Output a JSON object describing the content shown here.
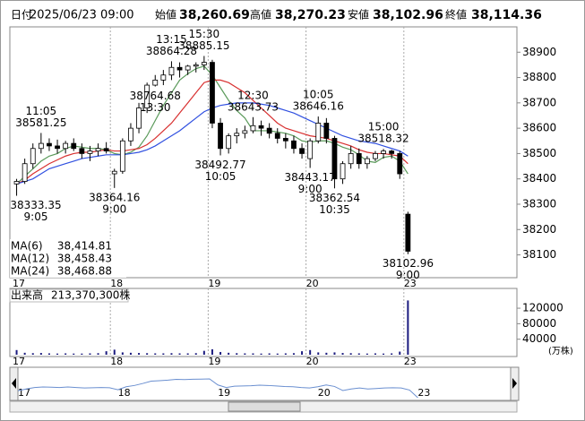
{
  "header": [
    {
      "label": "日付",
      "value": "2025/06/23 09:00",
      "color": "#000000"
    },
    {
      "label": "始値",
      "value": "38,260.69",
      "color": "#000000"
    },
    {
      "label": "高値",
      "value": "38,270.23",
      "color": "#e00000"
    },
    {
      "label": "安値",
      "value": "38,102.96",
      "color": "#008000"
    },
    {
      "label": "終値",
      "value": "38,114.36",
      "color": "#000000"
    }
  ],
  "chart_data": {
    "type": "candlestick",
    "categories": [
      "17",
      null,
      null,
      null,
      null,
      null,
      null,
      null,
      null,
      null,
      null,
      null,
      "18",
      null,
      null,
      null,
      null,
      null,
      null,
      null,
      null,
      null,
      null,
      null,
      "19",
      null,
      null,
      null,
      null,
      null,
      null,
      null,
      null,
      null,
      null,
      null,
      "20",
      null,
      null,
      null,
      null,
      null,
      null,
      null,
      null,
      null,
      null,
      null,
      "23"
    ],
    "open": [
      38380,
      38390,
      38460,
      38520,
      38540,
      38530,
      38520,
      38540,
      38520,
      38500,
      38510,
      38520,
      38420,
      38430,
      38550,
      38600,
      38680,
      38770,
      38790,
      38810,
      38840,
      38830,
      38845,
      38850,
      38860,
      38620,
      38520,
      38570,
      38580,
      38590,
      38610,
      38600,
      38580,
      38560,
      38550,
      38520,
      38480,
      38550,
      38620,
      38560,
      38400,
      38460,
      38500,
      38460,
      38480,
      38500,
      38510,
      38500,
      38260.69
    ],
    "high": [
      38400,
      38480,
      38540,
      38581.25,
      38560,
      38555,
      38550,
      38560,
      38540,
      38530,
      38540,
      38545,
      38440,
      38560,
      38620,
      38700,
      38780,
      38810,
      38830,
      38864.28,
      38860,
      38850,
      38860,
      38885.15,
      38870,
      38640,
      38580,
      38600,
      38610,
      38643.73,
      38630,
      38620,
      38600,
      38580,
      38570,
      38540,
      38560,
      38646.16,
      38640,
      38570,
      38470,
      38530,
      38520,
      38490,
      38510,
      38518.32,
      38515,
      38510,
      38270.23
    ],
    "low": [
      38333.35,
      38380,
      38440,
      38500,
      38510,
      38500,
      38500,
      38510,
      38480,
      38470,
      38490,
      38500,
      38364.16,
      38420,
      38530,
      38580,
      38660,
      38764.68,
      38770,
      38790,
      38800,
      38810,
      38820,
      38830,
      38600,
      38492.77,
      38500,
      38540,
      38560,
      38580,
      38570,
      38560,
      38540,
      38520,
      38500,
      38480,
      38443.17,
      38540,
      38540,
      38362.54,
      38380,
      38440,
      38440,
      38440,
      38470,
      38480,
      38480,
      38400,
      38102.96
    ],
    "close": [
      38390,
      38460,
      38520,
      38540,
      38530,
      38520,
      38540,
      38520,
      38500,
      38510,
      38520,
      38510,
      38430,
      38550,
      38600,
      38680,
      38770,
      38790,
      38810,
      38840,
      38830,
      38845,
      38850,
      38860,
      38620,
      38520,
      38570,
      38580,
      38590,
      38610,
      38600,
      38580,
      38560,
      38550,
      38520,
      38500,
      38550,
      38620,
      38560,
      38400,
      38460,
      38500,
      38460,
      38480,
      38500,
      38510,
      38500,
      38420,
      38114.36
    ],
    "ylim": [
      38010,
      39000
    ],
    "yticks": [
      38100,
      38200,
      38300,
      38400,
      38500,
      38600,
      38700,
      38800,
      38900
    ],
    "ma": [
      {
        "name": "MA(6)",
        "color": "#5a9a5a",
        "value_label": "38,414.81",
        "values": [
          38380,
          38410,
          38440,
          38470,
          38490,
          38500,
          38520,
          38530,
          38525,
          38520,
          38520,
          38515,
          38500,
          38495,
          38505,
          38525,
          38570,
          38630,
          38690,
          38740,
          38790,
          38815,
          38835,
          38845,
          38810,
          38760,
          38710,
          38670,
          38640,
          38590,
          38590,
          38590,
          38585,
          38580,
          38570,
          38550,
          38545,
          38550,
          38550,
          38540,
          38525,
          38515,
          38495,
          38470,
          38465,
          38485,
          38490,
          38470,
          38420
        ]
      },
      {
        "name": "MA(12)",
        "color": "#d83030",
        "value_label": "38,458.43",
        "values": [
          38380,
          38395,
          38420,
          38440,
          38460,
          38475,
          38490,
          38500,
          38505,
          38505,
          38510,
          38515,
          38510,
          38510,
          38515,
          38520,
          38535,
          38560,
          38590,
          38620,
          38660,
          38700,
          38740,
          38780,
          38790,
          38790,
          38780,
          38760,
          38740,
          38710,
          38680,
          38650,
          38620,
          38600,
          38590,
          38580,
          38570,
          38565,
          38560,
          38550,
          38540,
          38530,
          38515,
          38505,
          38500,
          38500,
          38495,
          38490,
          38460
        ]
      },
      {
        "name": "MA(24)",
        "color": "#3050e0",
        "value_label": "38,468.88",
        "values": [
          38380,
          38390,
          38400,
          38420,
          38440,
          38450,
          38460,
          38470,
          38480,
          38485,
          38490,
          38495,
          38495,
          38495,
          38500,
          38505,
          38515,
          38530,
          38550,
          38570,
          38590,
          38615,
          38640,
          38665,
          38680,
          38690,
          38695,
          38700,
          38700,
          38700,
          38695,
          38690,
          38680,
          38670,
          38660,
          38645,
          38630,
          38615,
          38600,
          38585,
          38570,
          38560,
          38550,
          38545,
          38540,
          38530,
          38520,
          38510,
          38490
        ]
      }
    ],
    "annotations": [
      {
        "candle": 0,
        "value": 38333.35,
        "time": "9:05",
        "side": "below"
      },
      {
        "candle": 3,
        "value": 38581.25,
        "time": "11:05",
        "side": "above"
      },
      {
        "candle": 12,
        "value": 38364.16,
        "time": "9:00",
        "side": "below"
      },
      {
        "candle": 17,
        "value": 38764.68,
        "time": "13:30",
        "side": "below"
      },
      {
        "candle": 19,
        "value": 38864.28,
        "time": "13:15",
        "side": "above"
      },
      {
        "candle": 23,
        "value": 38885.15,
        "time": "15:30",
        "side": "above"
      },
      {
        "candle": 25,
        "value": 38492.77,
        "time": "10:05",
        "side": "below"
      },
      {
        "candle": 29,
        "value": 38643.73,
        "time": "12:30",
        "side": "above"
      },
      {
        "candle": 36,
        "value": 38443.17,
        "time": "9:00",
        "side": "below"
      },
      {
        "candle": 37,
        "value": 38646.16,
        "time": "10:05",
        "side": "above"
      },
      {
        "candle": 39,
        "value": 38362.54,
        "time": "10:35",
        "side": "below"
      },
      {
        "candle": 45,
        "value": 38518.32,
        "time": "15:00",
        "side": "above"
      },
      {
        "candle": 48,
        "value": 38102.96,
        "time": "9:00",
        "side": "below"
      }
    ],
    "volume": {
      "label": "出来高",
      "total": "213,370,300株",
      "color": "#1c1c80",
      "unit": "(万株)",
      "ylim": [
        0,
        171000
      ],
      "yticks": [
        40000,
        80000,
        120000
      ],
      "values": [
        12000,
        5000,
        4000,
        4500,
        3500,
        3000,
        3500,
        3000,
        3000,
        3500,
        4000,
        9000,
        13000,
        6000,
        5000,
        4500,
        4000,
        3500,
        3500,
        4000,
        3500,
        3500,
        4000,
        10000,
        14000,
        7000,
        5000,
        4000,
        3500,
        3500,
        3000,
        3500,
        3000,
        3500,
        4000,
        9000,
        12000,
        6000,
        5000,
        6000,
        4500,
        4000,
        3500,
        3000,
        3500,
        3000,
        3500,
        8000,
        140000
      ]
    }
  }
}
